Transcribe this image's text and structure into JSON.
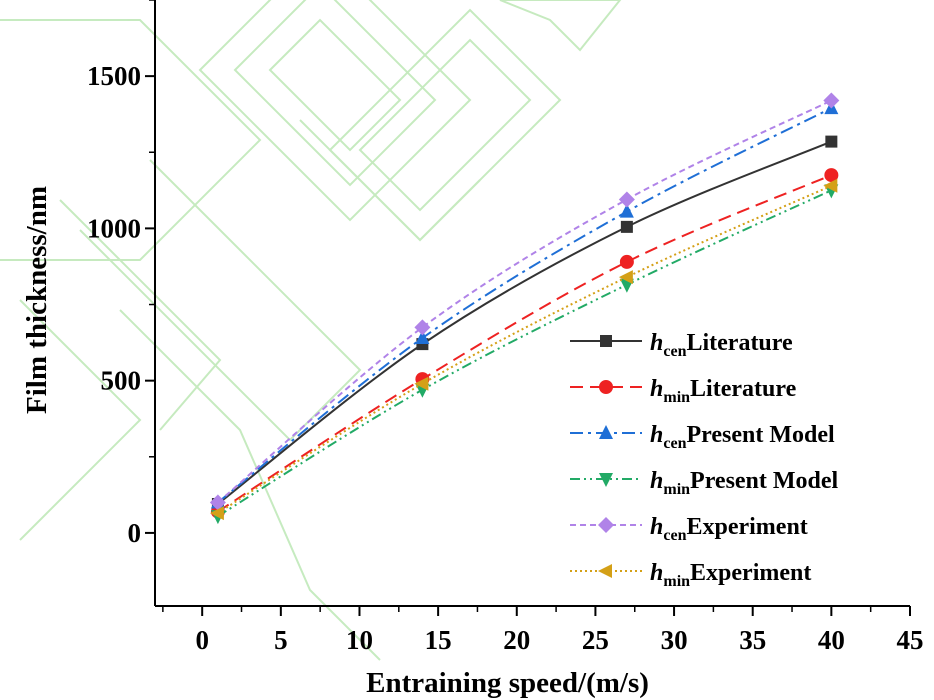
{
  "chart_data": {
    "type": "line",
    "xlabel": "Entraining speed/(m/s)",
    "ylabel": "Film thickness/nm",
    "xlim": [
      -3,
      45
    ],
    "ylim": [
      -240,
      1750
    ],
    "xticks": [
      0,
      5,
      10,
      15,
      20,
      25,
      30,
      35,
      40,
      45
    ],
    "yticks": [
      0,
      500,
      1000,
      1500
    ],
    "x": [
      1,
      14,
      27,
      40
    ],
    "legend_position": "bottom-right",
    "grid": false,
    "series": [
      {
        "prefix": "h",
        "sub": "cen",
        "label": "Literature",
        "values": [
          95,
          620,
          1005,
          1285
        ],
        "color": "#333333",
        "dash": "solid",
        "marker": "square"
      },
      {
        "prefix": "h",
        "sub": "min",
        "label": "Literature",
        "values": [
          70,
          505,
          890,
          1175
        ],
        "color": "#ee2222",
        "dash": "dash",
        "marker": "circle"
      },
      {
        "prefix": "h",
        "sub": "cen",
        "label": "Present Model",
        "values": [
          100,
          640,
          1055,
          1395
        ],
        "color": "#1f6fd6",
        "dash": "dashdot",
        "marker": "triangle-up"
      },
      {
        "prefix": "h",
        "sub": "min",
        "label": "Present Model",
        "values": [
          55,
          470,
          815,
          1125
        ],
        "color": "#22aa66",
        "dash": "dashdotdot",
        "marker": "triangle-down"
      },
      {
        "prefix": "h",
        "sub": "cen",
        "label": "Experiment",
        "values": [
          100,
          675,
          1095,
          1420
        ],
        "color": "#b083e8",
        "dash": "shortdash",
        "marker": "diamond"
      },
      {
        "prefix": "h",
        "sub": "min",
        "label": "Experiment",
        "values": [
          65,
          490,
          840,
          1140
        ],
        "color": "#d4a017",
        "dash": "dot",
        "marker": "triangle-left"
      }
    ]
  }
}
